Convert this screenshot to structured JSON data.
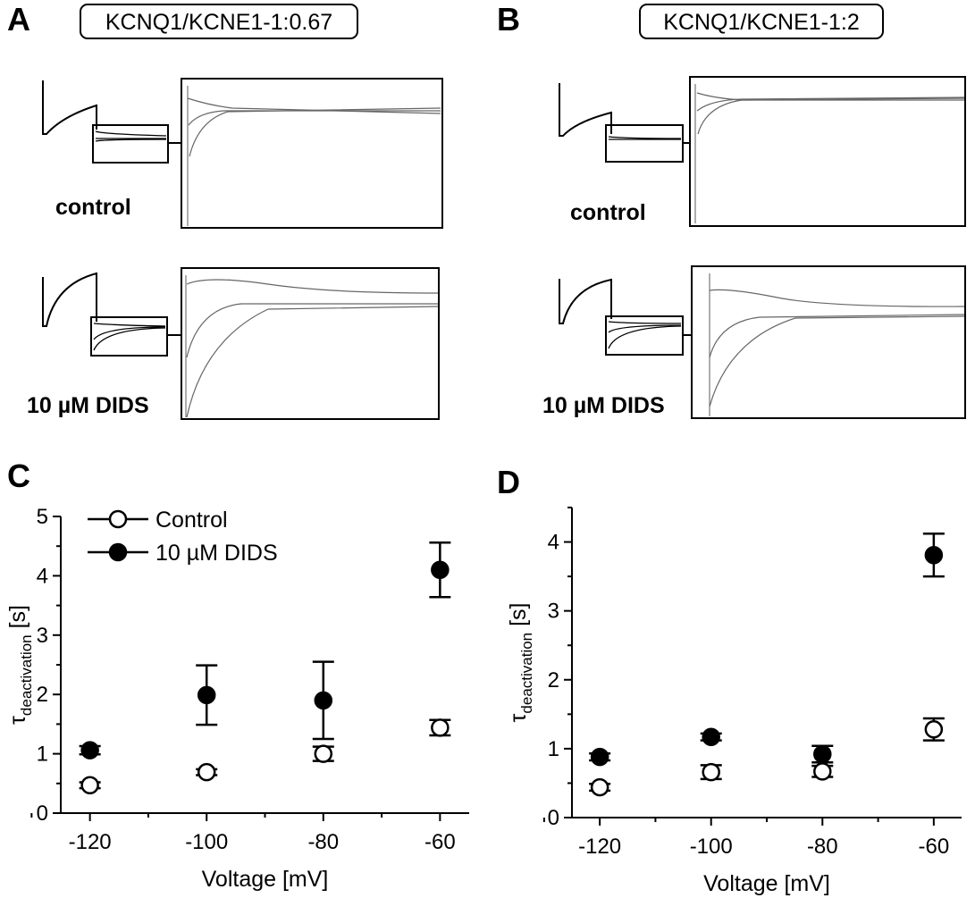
{
  "panels": {
    "A": {
      "letter": "A",
      "title": "KCNQ1/KCNE1-1:0.67",
      "top_label": "control",
      "bottom_label": "10 µM DIDS"
    },
    "B": {
      "letter": "B",
      "title": "KCNQ1/KCNE1-1:2",
      "top_label": "control",
      "bottom_label": "10 µM DIDS"
    },
    "C": {
      "letter": "C"
    },
    "D": {
      "letter": "D"
    }
  },
  "colors": {
    "ink": "#000000",
    "trace": "#555555",
    "open_marker": "#ffffff",
    "filled_marker": "#000000"
  },
  "chart_data": [
    {
      "panel": "C",
      "type": "scatter",
      "xlabel": "Voltage [mV]",
      "ylabel_main": "τ",
      "ylabel_sub": "deactivation",
      "ylabel_unit": " [s]",
      "xlim": [
        -125,
        -55
      ],
      "ylim": [
        0,
        5
      ],
      "xticks": [
        -120,
        -100,
        -80,
        -60
      ],
      "yticks": [
        0,
        1,
        2,
        3,
        4,
        5
      ],
      "legend_position": "top-left",
      "series": [
        {
          "name": "Control",
          "marker": "open",
          "points": [
            {
              "x": -120,
              "y": 0.47,
              "err": 0.05
            },
            {
              "x": -100,
              "y": 0.69,
              "err": 0.05
            },
            {
              "x": -80,
              "y": 1.0,
              "err": 0.12
            },
            {
              "x": -60,
              "y": 1.44,
              "err": 0.13
            }
          ]
        },
        {
          "name": "10 µM DIDS",
          "marker": "filled",
          "points": [
            {
              "x": -120,
              "y": 1.06,
              "err": 0.07
            },
            {
              "x": -100,
              "y": 1.99,
              "err": 0.5
            },
            {
              "x": -80,
              "y": 1.9,
              "err": 0.65
            },
            {
              "x": -60,
              "y": 4.1,
              "err": 0.46
            }
          ]
        }
      ]
    },
    {
      "panel": "D",
      "type": "scatter",
      "xlabel": "Voltage [mV]",
      "ylabel_main": "τ",
      "ylabel_sub": "deactivation",
      "ylabel_unit": " [s]",
      "xlim": [
        -125,
        -55
      ],
      "ylim": [
        0,
        4.5
      ],
      "xticks": [
        -120,
        -100,
        -80,
        -60
      ],
      "yticks": [
        0,
        1,
        2,
        3,
        4
      ],
      "series": [
        {
          "name": "Control",
          "marker": "open",
          "points": [
            {
              "x": -120,
              "y": 0.44,
              "err": 0.05
            },
            {
              "x": -100,
              "y": 0.66,
              "err": 0.1
            },
            {
              "x": -80,
              "y": 0.67,
              "err": 0.08
            },
            {
              "x": -60,
              "y": 1.28,
              "err": 0.16
            }
          ]
        },
        {
          "name": "10 µM DIDS",
          "marker": "filled",
          "points": [
            {
              "x": -120,
              "y": 0.88,
              "err": 0.05
            },
            {
              "x": -100,
              "y": 1.17,
              "err": 0.05
            },
            {
              "x": -80,
              "y": 0.92,
              "err": 0.12
            },
            {
              "x": -60,
              "y": 3.81,
              "err": 0.31
            }
          ]
        }
      ]
    }
  ]
}
